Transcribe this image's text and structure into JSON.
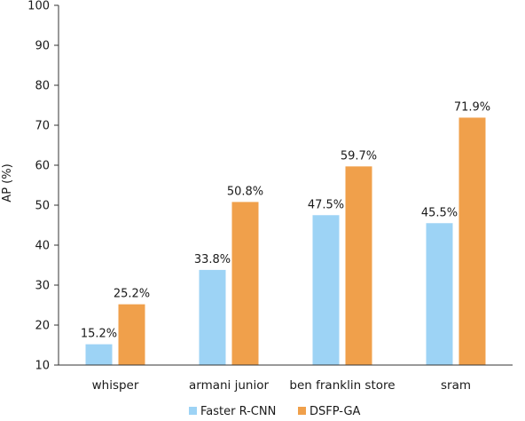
{
  "chart_data": {
    "type": "bar",
    "title": "",
    "xlabel": "",
    "ylabel": "AP (%)",
    "ylim": [
      10,
      100
    ],
    "yticks": [
      10,
      20,
      30,
      40,
      50,
      60,
      70,
      80,
      90,
      100
    ],
    "grid": false,
    "legend_position": "bottom",
    "categories": [
      "whisper",
      "armani junior",
      "ben franklin store",
      "sram"
    ],
    "series": [
      {
        "name": "Faster R-CNN",
        "color": "#9dd3f5",
        "values": [
          15.2,
          33.8,
          47.5,
          45.5
        ],
        "labels": [
          "15.2%",
          "33.8%",
          "47.5%",
          "45.5%"
        ]
      },
      {
        "name": "DSFP-GA",
        "color": "#f0a04b",
        "values": [
          25.2,
          50.8,
          59.7,
          71.9
        ],
        "labels": [
          "25.2%",
          "50.8%",
          "59.7%",
          "71.9%"
        ]
      }
    ]
  }
}
